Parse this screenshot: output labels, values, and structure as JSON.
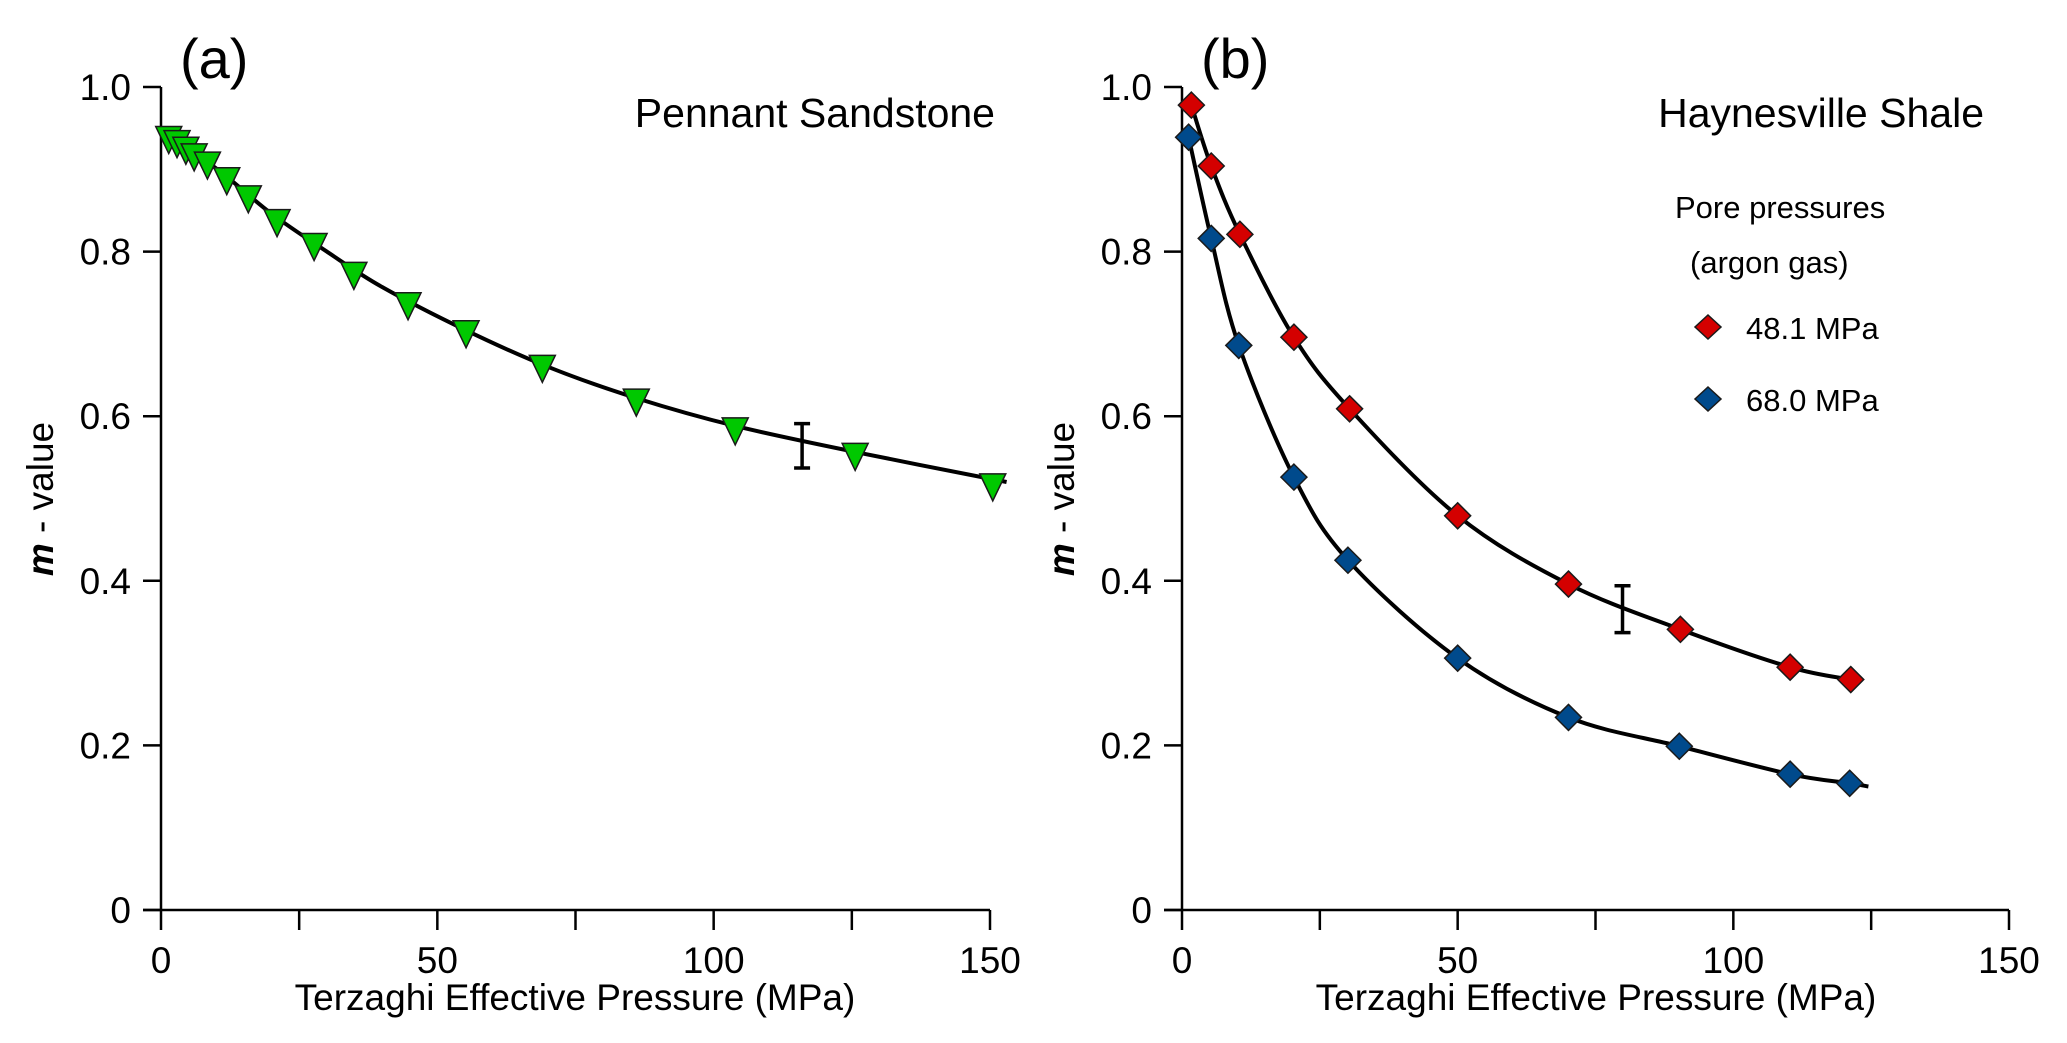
{
  "chart_data": [
    {
      "type": "scatter",
      "panel_label": "(a)",
      "title": "Pennant Sandstone",
      "xlabel": "Terzaghi Effective Pressure  (MPa)",
      "ylabel_bold": "m",
      "ylabel_rest": " - value",
      "xlim": [
        0,
        150
      ],
      "ylim": [
        0,
        1.0
      ],
      "xticks": [
        0,
        50,
        100,
        150
      ],
      "xtick_labels": [
        "0",
        "50",
        "100",
        "150"
      ],
      "xminor_ticks": [
        25,
        75,
        125
      ],
      "yticks": [
        0,
        0.2,
        0.4,
        0.6,
        0.8,
        1.0
      ],
      "ytick_labels": [
        "0",
        "0.2",
        "0.4",
        "0.6",
        "0.8",
        "1.0"
      ],
      "grid": false,
      "series": [
        {
          "name": "Pennant Sandstone",
          "marker": "triangle-down",
          "color": "#00c800",
          "x": [
            1.4,
            2.9,
            4.5,
            6.0,
            8.4,
            11.9,
            15.8,
            21.0,
            27.7,
            34.9,
            44.7,
            55.2,
            69.0,
            86.0,
            103.9,
            125.6,
            150.5
          ],
          "y": [
            0.941,
            0.936,
            0.928,
            0.92,
            0.91,
            0.891,
            0.869,
            0.84,
            0.811,
            0.776,
            0.739,
            0.705,
            0.663,
            0.622,
            0.587,
            0.556,
            0.519
          ],
          "fit_x": [
            0,
            10,
            20,
            30,
            40,
            55,
            70,
            86,
            104,
            126,
            153
          ],
          "fit_y": [
            0.945,
            0.901,
            0.846,
            0.8,
            0.757,
            0.705,
            0.66,
            0.622,
            0.588,
            0.556,
            0.52
          ]
        }
      ],
      "error_bar": {
        "x": 116,
        "y_low": 0.537,
        "y_high": 0.591
      }
    },
    {
      "type": "scatter",
      "panel_label": "(b)",
      "title": "Haynesville Shale",
      "xlabel": "Terzaghi Effective Pressure  (MPa)",
      "ylabel_bold": "m",
      "ylabel_rest": " - value",
      "xlim": [
        0,
        150
      ],
      "ylim": [
        0,
        1.0
      ],
      "xticks": [
        0,
        50,
        100,
        150
      ],
      "xtick_labels": [
        "0",
        "50",
        "100",
        "150"
      ],
      "xminor_ticks": [
        25,
        75,
        125
      ],
      "yticks": [
        0,
        0.2,
        0.4,
        0.6,
        0.8,
        1.0
      ],
      "ytick_labels": [
        "0",
        "0.2",
        "0.4",
        "0.6",
        "0.8",
        "1.0"
      ],
      "grid": false,
      "legend": {
        "title_line1": "Pore pressures",
        "title_line2": "(argon gas)",
        "placement": "top-right"
      },
      "series": [
        {
          "name": "48.1 MPa",
          "marker": "diamond",
          "color": "#d40000",
          "x": [
            1.7,
            5.3,
            10.5,
            20.3,
            30.4,
            50.0,
            70.1,
            90.4,
            110.3,
            121.3
          ],
          "y": [
            0.978,
            0.904,
            0.821,
            0.696,
            0.609,
            0.479,
            0.396,
            0.341,
            0.295,
            0.28
          ],
          "fit_x": [
            1.7,
            5.3,
            10.5,
            20.3,
            30.4,
            50.0,
            70.1,
            90.4,
            110.3,
            121.3
          ],
          "fit_y": [
            0.978,
            0.904,
            0.821,
            0.696,
            0.609,
            0.479,
            0.396,
            0.341,
            0.295,
            0.28
          ]
        },
        {
          "name": "68.0 MPa",
          "marker": "diamond",
          "color": "#004a8c",
          "x": [
            1.2,
            5.3,
            10.3,
            20.3,
            30.1,
            50.0,
            70.1,
            90.2,
            110.3,
            121.1
          ],
          "y": [
            0.939,
            0.816,
            0.686,
            0.526,
            0.425,
            0.306,
            0.234,
            0.199,
            0.165,
            0.154
          ],
          "fit_x": [
            1.2,
            5.3,
            10.3,
            20.3,
            30.1,
            50.0,
            70.1,
            90.2,
            110.3,
            121.1,
            124.5
          ],
          "fit_y": [
            0.939,
            0.816,
            0.686,
            0.526,
            0.425,
            0.306,
            0.234,
            0.199,
            0.165,
            0.154,
            0.15
          ]
        }
      ],
      "error_bar": {
        "x": 79.9,
        "y_low": 0.337,
        "y_high": 0.394
      }
    }
  ]
}
